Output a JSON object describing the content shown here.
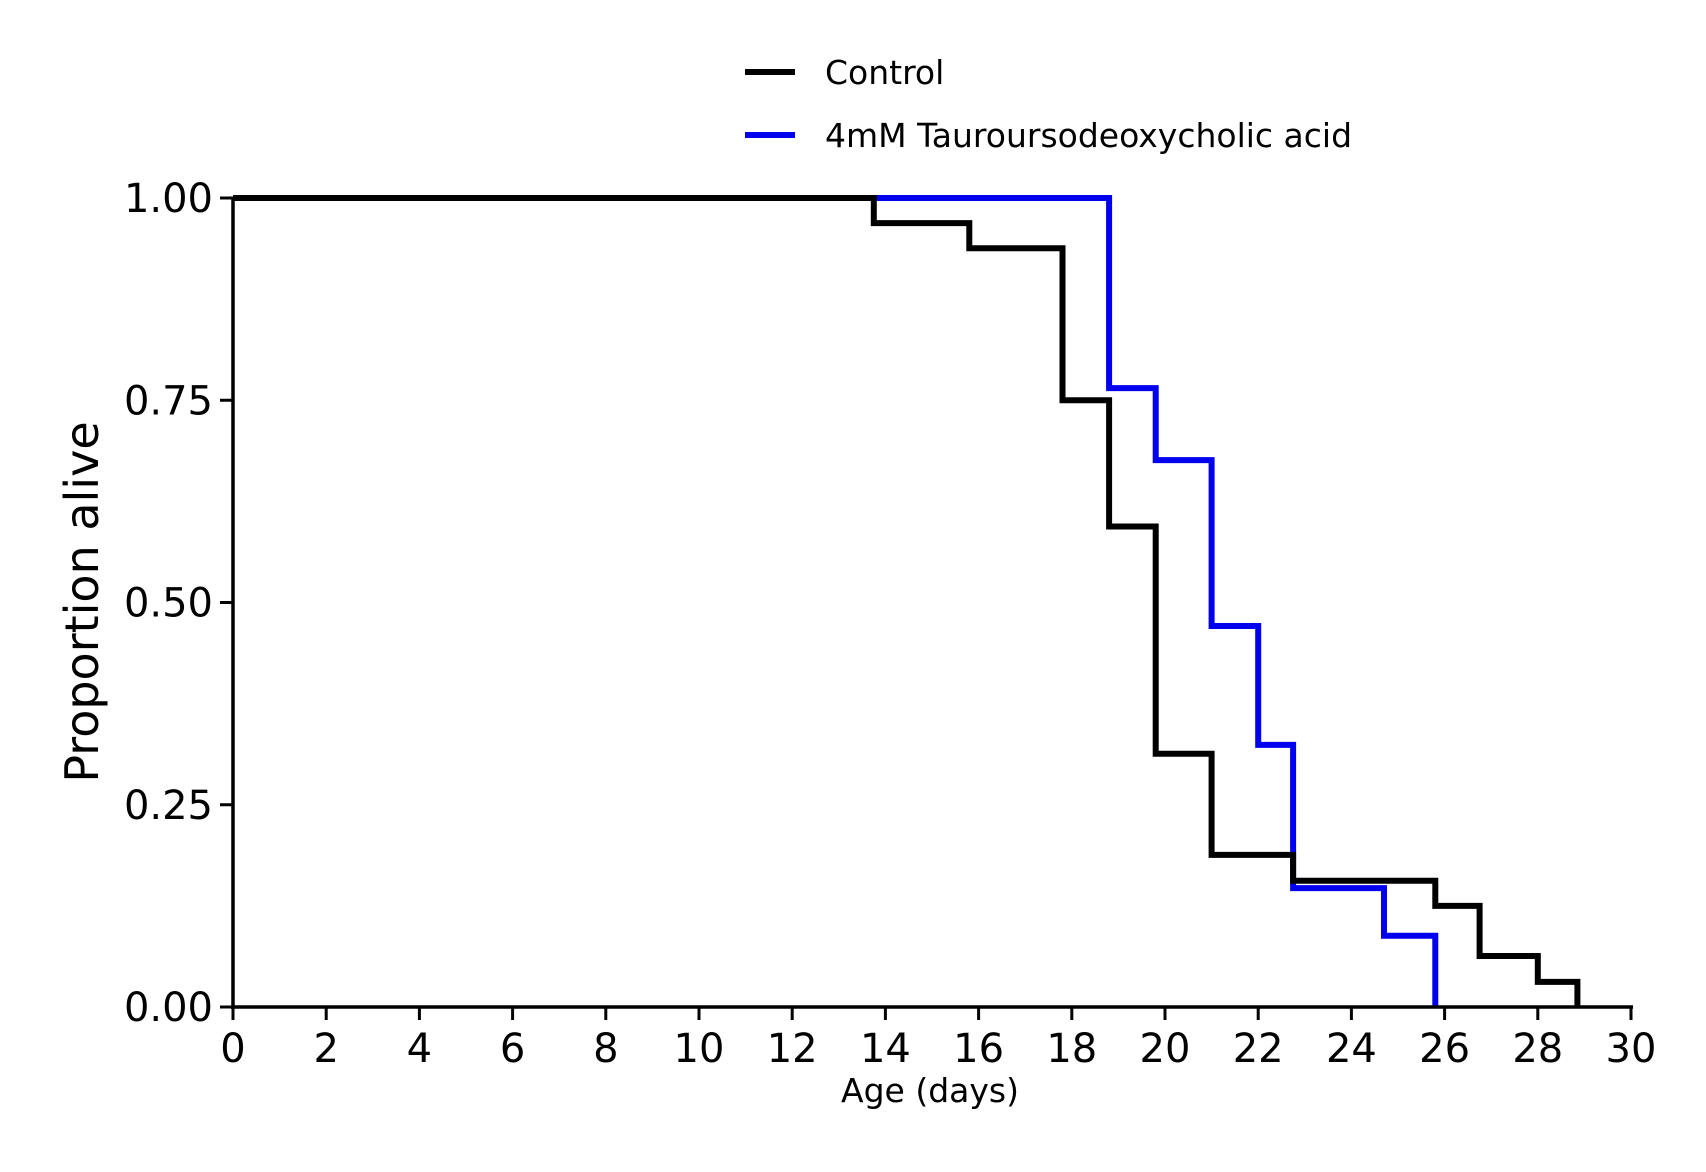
{
  "chart_data": {
    "type": "line",
    "step": true,
    "xlabel": "Age (days)",
    "ylabel": "Proportion alive",
    "xlim": [
      0,
      30
    ],
    "ylim": [
      0,
      1
    ],
    "xticks": [
      0,
      2,
      4,
      6,
      8,
      10,
      12,
      14,
      16,
      18,
      20,
      22,
      24,
      26,
      28,
      30
    ],
    "yticks": [
      0,
      0.25,
      0.5,
      0.75,
      1
    ],
    "ytick_labels": [
      "0.00",
      "0.25",
      "0.50",
      "0.75",
      "1.00"
    ],
    "grid": false,
    "legend_position": "top-center",
    "series": [
      {
        "name": "Control",
        "color": "#000000",
        "x": [
          0,
          13.75,
          15.8,
          17.8,
          18.8,
          19.8,
          21.0,
          22.75,
          25.8,
          26.75,
          28.0,
          28.85
        ],
        "y": [
          1.0,
          0.969,
          0.938,
          0.75,
          0.594,
          0.313,
          0.188,
          0.156,
          0.125,
          0.063,
          0.031,
          0.0
        ]
      },
      {
        "name": "4mM Tauroursodeoxycholic acid",
        "color": "#0000ee",
        "x": [
          0,
          18.8,
          19.8,
          21.0,
          22.0,
          22.75,
          24.7,
          25.8
        ],
        "y": [
          1.0,
          0.765,
          0.676,
          0.471,
          0.324,
          0.147,
          0.088,
          0.0
        ]
      }
    ]
  }
}
